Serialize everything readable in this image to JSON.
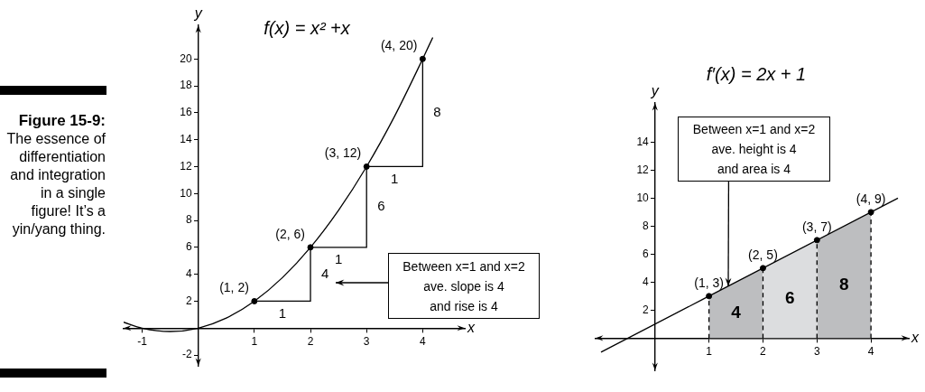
{
  "chart_data": [
    {
      "type": "line",
      "title": "f(x) = x² +x",
      "xlabel": "x",
      "ylabel": "y",
      "xlim": [
        -1.33,
        4.75
      ],
      "ylim": [
        -2.8,
        22.5
      ],
      "xticks": [
        -1,
        1,
        2,
        3,
        4
      ],
      "yticks": [
        -2,
        2,
        4,
        6,
        8,
        10,
        12,
        14,
        16,
        18,
        20
      ],
      "series": [
        {
          "type": "line",
          "color": "#000000",
          "marker": "none",
          "x": [
            -1.33,
            -1,
            -0.5,
            0,
            0.5,
            1,
            1.5,
            2,
            2.5,
            3,
            3.5,
            4,
            4.18
          ],
          "values": [
            0.44,
            0,
            -0.25,
            0,
            0.75,
            2,
            3.75,
            6,
            8.75,
            12,
            15.75,
            20,
            21.6
          ]
        },
        {
          "type": "line",
          "color": "#000000",
          "marker": "none",
          "x": [
            1,
            2,
            2
          ],
          "values": [
            2,
            2,
            6
          ]
        },
        {
          "type": "line",
          "color": "#000000",
          "marker": "none",
          "x": [
            2,
            3,
            3
          ],
          "values": [
            6,
            6,
            12
          ]
        },
        {
          "type": "line",
          "color": "#000000",
          "marker": "none",
          "x": [
            3,
            4,
            4
          ],
          "values": [
            12,
            12,
            20
          ]
        },
        {
          "type": "scatter",
          "color": "#000000",
          "marker": "circle",
          "x": [
            1,
            2,
            3,
            4
          ],
          "values": [
            2,
            6,
            12,
            20
          ],
          "value_labels": [
            "(1, 2)",
            "(2, 6)",
            "(3, 12)",
            "(4, 20)"
          ]
        }
      ],
      "annotations": [
        "Figure 15-9:",
        "The essence of differentiation and integration in a single figure! It’s a yin/yang thing.",
        "Between x=1 and x=2\nave. slope is 4\nand rise is 4",
        {
          "text": "1",
          "x": 1.5,
          "y": 2
        },
        {
          "text": "1",
          "x": 2.5,
          "y": 6
        },
        {
          "text": "1",
          "x": 3.5,
          "y": 12
        },
        {
          "text": "4",
          "x": 2,
          "y": 4
        },
        {
          "text": "6",
          "x": 3,
          "y": 9
        },
        {
          "text": "8",
          "x": 4,
          "y": 16
        }
      ]
    },
    {
      "type": "line",
      "title": "f′(x) = 2x + 1",
      "xlabel": "x",
      "ylabel": "y",
      "xlim": [
        -1.1,
        4.7
      ],
      "ylim": [
        -2.3,
        16.8
      ],
      "xticks": [
        1,
        2,
        3,
        4
      ],
      "yticks": [
        2,
        4,
        6,
        8,
        10,
        12,
        14
      ],
      "series": [
        {
          "type": "line",
          "color": "#000000",
          "marker": "none",
          "x": [
            -1,
            4.5
          ],
          "values": [
            -1,
            10
          ]
        },
        {
          "type": "area",
          "color": "#bdbec0",
          "marker": "none",
          "x": [
            1,
            2
          ],
          "values": [
            3,
            5
          ]
        },
        {
          "type": "area",
          "color": "#dcdddf",
          "marker": "none",
          "x": [
            2,
            3
          ],
          "values": [
            5,
            7
          ]
        },
        {
          "type": "area",
          "color": "#bdbec0",
          "marker": "none",
          "x": [
            3,
            4
          ],
          "values": [
            7,
            9
          ]
        },
        {
          "type": "line",
          "color": "#000000",
          "marker": "none",
          "line_style": "dashed",
          "x": [
            1,
            1
          ],
          "values": [
            0,
            3
          ]
        },
        {
          "type": "line",
          "color": "#000000",
          "marker": "none",
          "line_style": "dashed",
          "x": [
            2,
            2
          ],
          "values": [
            0,
            5
          ]
        },
        {
          "type": "line",
          "color": "#000000",
          "marker": "none",
          "line_style": "dashed",
          "x": [
            3,
            3
          ],
          "values": [
            0,
            7
          ]
        },
        {
          "type": "line",
          "color": "#000000",
          "marker": "none",
          "line_style": "dashed",
          "x": [
            4,
            4
          ],
          "values": [
            0,
            9
          ]
        },
        {
          "type": "scatter",
          "color": "#000000",
          "marker": "circle",
          "x": [
            1,
            2,
            3,
            4
          ],
          "values": [
            3,
            5,
            7,
            9
          ],
          "value_labels": [
            "(1, 3)",
            "(2, 5)",
            "(3, 7)",
            "(4, 9)"
          ]
        }
      ],
      "annotations": [
        {
          "text": "Between x=1 and x=2\nave. height is 4\nand area is 4",
          "x": 1.35,
          "y": 3.7
        },
        "4",
        "6",
        "8"
      ]
    }
  ]
}
